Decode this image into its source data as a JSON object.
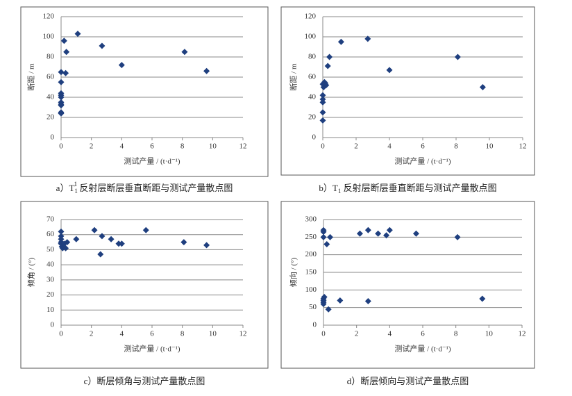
{
  "chart_data": [
    {
      "type": "scatter",
      "caption_parts": [
        "a）T",
        "1",
        "1",
        " 反射层断层垂直断距与测试产量散点图"
      ],
      "caption_styles": [
        "normal",
        "sub",
        "sup",
        "normal"
      ],
      "xlabel": "测试产量 / (t·d⁻¹)",
      "ylabel": "断距 / m",
      "color": "#1f3f7f",
      "grid": true,
      "xlim": [
        0,
        12
      ],
      "xticks": [
        0,
        2,
        4,
        6,
        8,
        10,
        12
      ],
      "ylim": [
        0,
        120
      ],
      "yticks": [
        0,
        20,
        40,
        60,
        80,
        100,
        120
      ],
      "x": [
        0,
        0.2,
        0.35,
        1.1,
        2.7,
        4,
        8.15,
        9.6,
        0.3,
        0,
        0,
        0,
        0,
        0,
        0,
        0,
        0,
        0
      ],
      "values": [
        65,
        96,
        85,
        103,
        91,
        72,
        85,
        66,
        64,
        55,
        44,
        42,
        40,
        35,
        33,
        32,
        25,
        24
      ]
    },
    {
      "type": "scatter",
      "caption_parts": [
        "b）T",
        "1",
        " 反射层断层垂直断距与测试产量散点图"
      ],
      "caption_styles": [
        "normal",
        "sub",
        "normal"
      ],
      "xlabel": "测试产量 / (t·d⁻¹)",
      "ylabel": "断距 / m",
      "color": "#1f3f7f",
      "grid": true,
      "xlim": [
        0,
        12
      ],
      "xticks": [
        0,
        2,
        4,
        6,
        8,
        10,
        12
      ],
      "ylim": [
        0,
        120
      ],
      "yticks": [
        0,
        20,
        40,
        60,
        80,
        100,
        120
      ],
      "x": [
        0,
        0,
        0,
        0,
        0,
        0.05,
        0,
        0.1,
        0.2,
        0.15,
        0.3,
        0.4,
        1.1,
        2.7,
        4,
        8.1,
        9.6
      ],
      "values": [
        17,
        25,
        35,
        38,
        42,
        50,
        53,
        55,
        52,
        54,
        71,
        80,
        95,
        98,
        67,
        80,
        50
      ]
    },
    {
      "type": "scatter",
      "caption_parts": [
        "c）断层倾角与测试产量散点图"
      ],
      "caption_styles": [
        "normal"
      ],
      "xlabel": "测试产量 / (t·d⁻¹)",
      "ylabel": "倾角 / (°)",
      "color": "#1f3f7f",
      "grid": true,
      "xlim": [
        0,
        12
      ],
      "xticks": [
        0,
        2,
        4,
        6,
        8,
        10,
        12
      ],
      "ylim": [
        0,
        70
      ],
      "yticks": [
        0,
        10,
        20,
        30,
        40,
        50,
        60,
        70
      ],
      "x": [
        0,
        0,
        0,
        0,
        0,
        0.05,
        0.1,
        0.2,
        0.3,
        0.4,
        1,
        2.2,
        2.6,
        2.7,
        3.3,
        3.8,
        4,
        5.6,
        8.1,
        9.6
      ],
      "values": [
        62,
        59,
        57,
        55,
        54,
        52,
        51,
        54,
        51,
        55,
        57,
        63,
        47,
        59,
        57,
        54,
        54,
        63,
        55,
        53
      ]
    },
    {
      "type": "scatter",
      "caption_parts": [
        "d）断层倾向与测试产量散点图"
      ],
      "caption_styles": [
        "normal"
      ],
      "xlabel": "测试产量 / (t·d⁻¹)",
      "ylabel": "倾向 / (°)",
      "color": "#1f3f7f",
      "grid": true,
      "xlim": [
        0,
        12
      ],
      "xticks": [
        0,
        2,
        4,
        6,
        8,
        10,
        12
      ],
      "ylim": [
        0,
        300
      ],
      "yticks": [
        0,
        50,
        100,
        150,
        200,
        250,
        300
      ],
      "x": [
        0,
        0,
        0,
        0.05,
        0,
        0,
        0,
        0,
        0.3,
        0.2,
        0.4,
        1,
        2.2,
        2.7,
        2.7,
        3.3,
        3.8,
        4,
        5.6,
        8.1,
        9.6
      ],
      "values": [
        270,
        265,
        250,
        80,
        75,
        70,
        65,
        60,
        45,
        230,
        250,
        70,
        260,
        270,
        68,
        260,
        255,
        270,
        260,
        250,
        75
      ]
    }
  ]
}
